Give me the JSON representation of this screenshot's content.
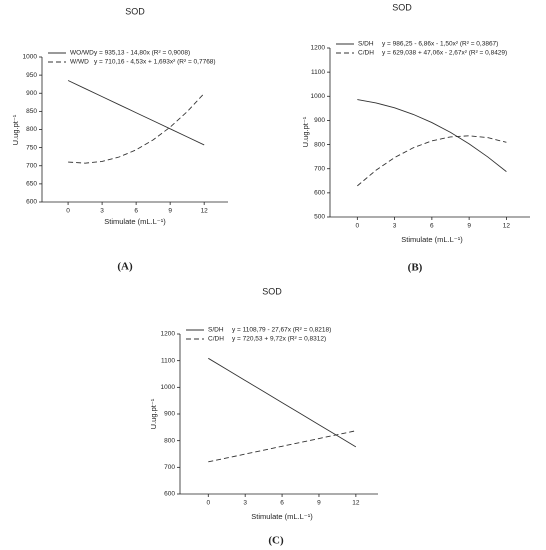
{
  "chart_data": [
    {
      "type": "line",
      "title": "SOD",
      "panel_label": "(A)",
      "x_label": "Stimulate (mL.L⁻¹)",
      "y_label": "U.ug.pt⁻¹",
      "x": [
        0,
        1.5,
        3,
        4.5,
        6,
        7.5,
        9,
        10.5,
        12
      ],
      "series": [
        {
          "name": "WO/WD",
          "equation": "y = 935,13 - 14,80x (R² = 0,9008)",
          "color": "#333333",
          "dash": false,
          "values": [
            935.1,
            912.9,
            890.7,
            868.5,
            846.3,
            824.1,
            801.9,
            779.7,
            757.5
          ]
        },
        {
          "name": "W/WD",
          "equation": "y = 710,16 - 4,53x + 1,693x² (R² = 0,7768)",
          "color": "#333333",
          "dash": true,
          "values": [
            710.2,
            707.2,
            711.8,
            724.1,
            743.9,
            771.4,
            806.5,
            849.2,
            899.6
          ]
        }
      ],
      "xlim": [
        -2.3,
        14.1
      ],
      "xticks": [
        0,
        3,
        6,
        9,
        12
      ],
      "ylim": [
        600,
        1000
      ],
      "yticks": [
        600,
        650,
        700,
        750,
        800,
        850,
        900,
        950,
        1000
      ],
      "grid": false
    },
    {
      "type": "line",
      "title": "SOD",
      "panel_label": "(B)",
      "x_label": "Stimulate (mL.L⁻¹)",
      "y_label": "U.ug.pt⁻¹",
      "x": [
        0,
        1.5,
        3,
        4.5,
        6,
        7.5,
        9,
        10.5,
        12
      ],
      "series": [
        {
          "name": "S/DH",
          "equation": "y = 986,25 - 6,86x - 1,50x² (R² = 0,3867)",
          "color": "#333333",
          "dash": false,
          "values": [
            986.3,
            972.6,
            952.2,
            925.0,
            891.1,
            850.4,
            803.0,
            748.8,
            687.9
          ]
        },
        {
          "name": "C/DH",
          "equation": "y = 629,038 + 47,06x - 2,67x² (R² = 0,8429)",
          "color": "#333333",
          "dash": true,
          "values": [
            629.0,
            693.6,
            746.2,
            786.7,
            815.3,
            831.8,
            836.3,
            828.8,
            809.3
          ]
        }
      ],
      "xlim": [
        -2.2,
        13.9
      ],
      "xticks": [
        0,
        3,
        6,
        9,
        12
      ],
      "ylim": [
        500,
        1200
      ],
      "yticks": [
        500,
        600,
        700,
        800,
        900,
        1000,
        1100,
        1200
      ],
      "grid": false
    },
    {
      "type": "line",
      "title": "SOD",
      "panel_label": "(C)",
      "x_label": "Stimulate (mL.L⁻¹)",
      "y_label": "U.ug.pt⁻¹",
      "x": [
        0,
        1.5,
        3,
        4.5,
        6,
        7.5,
        9,
        10.5,
        12
      ],
      "series": [
        {
          "name": "S/DH",
          "equation": "y = 1108,79 - 27,67x (R² = 0,8218)",
          "color": "#333333",
          "dash": false,
          "values": [
            1108.8,
            1067.3,
            1025.8,
            984.3,
            942.8,
            901.3,
            859.8,
            818.3,
            776.8
          ]
        },
        {
          "name": "C/DH",
          "equation": "y = 720,53 + 9,72x (R² = 0,8312)",
          "color": "#333333",
          "dash": true,
          "values": [
            720.5,
            735.1,
            749.7,
            764.3,
            778.9,
            793.4,
            808.0,
            822.6,
            837.2
          ]
        }
      ],
      "xlim": [
        -2.3,
        13.8
      ],
      "xticks": [
        0,
        3,
        6,
        9,
        12
      ],
      "ylim": [
        600,
        1200
      ],
      "yticks": [
        600,
        700,
        800,
        900,
        1000,
        1100,
        1200
      ],
      "grid": false
    }
  ]
}
